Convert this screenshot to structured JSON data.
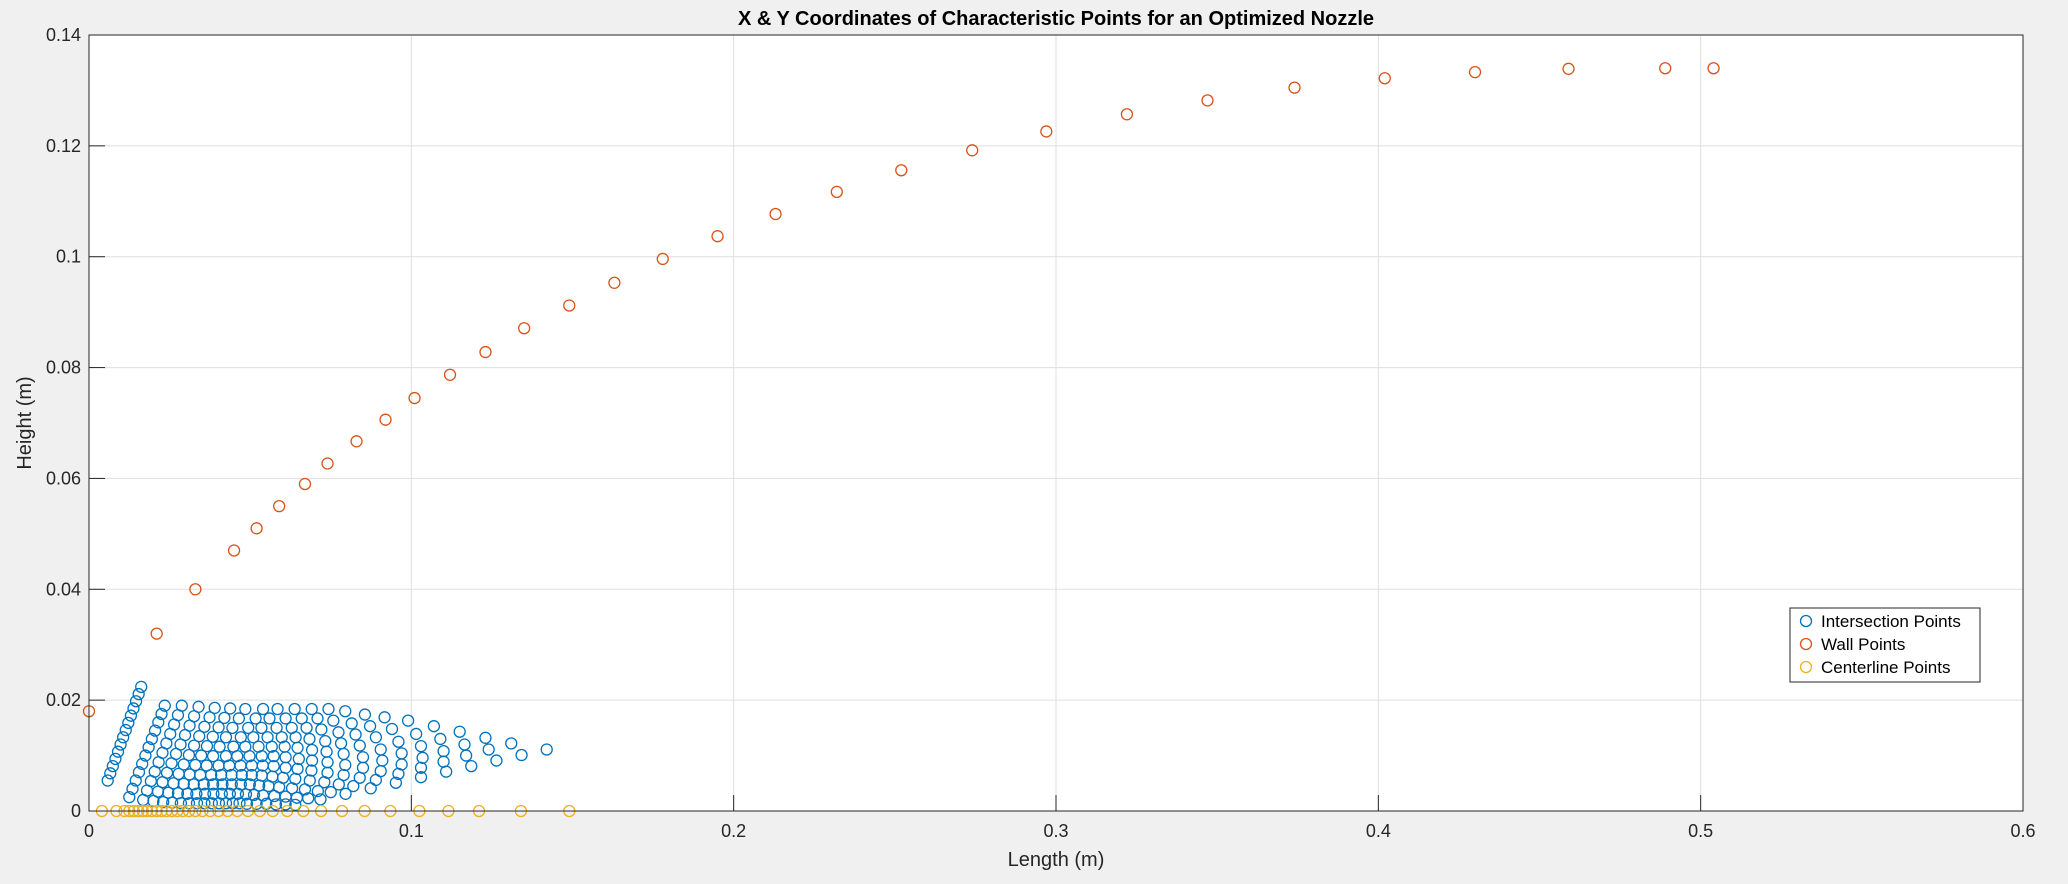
{
  "chart_data": {
    "type": "scatter",
    "title": "X & Y Coordinates of Characteristic Points for an Optimized Nozzle",
    "xlabel": "Length (m)",
    "ylabel": "Height (m)",
    "xlim": [
      0,
      0.6
    ],
    "ylim": [
      0,
      0.14
    ],
    "xticks": [
      0,
      0.1,
      0.2,
      0.3,
      0.4,
      0.5,
      0.6
    ],
    "xtick_labels": [
      "0",
      "0.1",
      "0.2",
      "0.3",
      "0.4",
      "0.5",
      "0.6"
    ],
    "yticks": [
      0,
      0.02,
      0.04,
      0.06,
      0.08,
      0.1,
      0.12,
      0.14
    ],
    "ytick_labels": [
      "0",
      "0.02",
      "0.04",
      "0.06",
      "0.08",
      "0.1",
      "0.12",
      "0.14"
    ],
    "grid": true,
    "legend_position": "bottom-right",
    "marker": "circle-open",
    "series": [
      {
        "name": "Intersection Points",
        "color": "#0072BD",
        "x": [
          0.0058,
          0.0066,
          0.0074,
          0.0082,
          0.009,
          0.0098,
          0.0106,
          0.0114,
          0.0122,
          0.013,
          0.0138,
          0.0146,
          0.0154,
          0.0162,
          0.0125,
          0.0135,
          0.0145,
          0.0155,
          0.0165,
          0.0175,
          0.0185,
          0.0195,
          0.0205,
          0.0215,
          0.0225,
          0.0235,
          0.0168,
          0.018,
          0.0192,
          0.0204,
          0.0216,
          0.0228,
          0.024,
          0.0252,
          0.0264,
          0.0276,
          0.0288,
          0.02,
          0.0214,
          0.0228,
          0.0242,
          0.0256,
          0.027,
          0.0284,
          0.0298,
          0.0312,
          0.0326,
          0.034,
          0.023,
          0.0246,
          0.0262,
          0.0278,
          0.0294,
          0.031,
          0.0326,
          0.0342,
          0.0358,
          0.0374,
          0.039,
          0.0258,
          0.0276,
          0.0294,
          0.0312,
          0.033,
          0.0348,
          0.0366,
          0.0384,
          0.0402,
          0.042,
          0.0438,
          0.0285,
          0.0305,
          0.0325,
          0.0345,
          0.0365,
          0.0385,
          0.0405,
          0.0425,
          0.0445,
          0.0465,
          0.0485,
          0.031,
          0.0333,
          0.0356,
          0.0379,
          0.0402,
          0.0425,
          0.0448,
          0.0471,
          0.0494,
          0.0517,
          0.054,
          0.0335,
          0.036,
          0.0385,
          0.041,
          0.0435,
          0.046,
          0.0485,
          0.051,
          0.0535,
          0.056,
          0.0585,
          0.0358,
          0.0386,
          0.0414,
          0.0442,
          0.047,
          0.0498,
          0.0526,
          0.0554,
          0.0582,
          0.061,
          0.0638,
          0.0381,
          0.0412,
          0.0443,
          0.0474,
          0.0505,
          0.0536,
          0.0567,
          0.0598,
          0.0629,
          0.066,
          0.0691,
          0.0403,
          0.0437,
          0.0471,
          0.0505,
          0.0539,
          0.0573,
          0.0607,
          0.0641,
          0.0675,
          0.0709,
          0.0743,
          0.0425,
          0.0462,
          0.0499,
          0.0536,
          0.0573,
          0.061,
          0.0647,
          0.0684,
          0.0721,
          0.0758,
          0.0795,
          0.0446,
          0.0487,
          0.0528,
          0.0569,
          0.061,
          0.0651,
          0.0692,
          0.0733,
          0.0774,
          0.0815,
          0.0856,
          0.0467,
          0.0512,
          0.0557,
          0.0602,
          0.0647,
          0.0692,
          0.0737,
          0.0782,
          0.0827,
          0.0872,
          0.0917,
          0.049,
          0.054,
          0.059,
          0.064,
          0.069,
          0.074,
          0.079,
          0.084,
          0.089,
          0.094,
          0.099,
          0.052,
          0.0575,
          0.063,
          0.0685,
          0.074,
          0.0795,
          0.085,
          0.0905,
          0.096,
          0.1015,
          0.107,
          0.055,
          0.061,
          0.067,
          0.073,
          0.079,
          0.085,
          0.091,
          0.097,
          0.103,
          0.109,
          0.115,
          0.058,
          0.0645,
          0.071,
          0.0775,
          0.084,
          0.0905,
          0.097,
          0.1035,
          0.11,
          0.1165,
          0.123,
          0.061,
          0.068,
          0.075,
          0.082,
          0.089,
          0.096,
          0.103,
          0.11,
          0.117,
          0.124,
          0.131,
          0.064,
          0.0718,
          0.0796,
          0.0874,
          0.0952,
          0.103,
          0.1108,
          0.1186,
          0.1264,
          0.1342,
          0.142
        ],
        "y": [
          0.0055,
          0.0068,
          0.0081,
          0.0094,
          0.0107,
          0.012,
          0.0133,
          0.0146,
          0.0159,
          0.0172,
          0.0185,
          0.0198,
          0.0211,
          0.0224,
          0.0025,
          0.004,
          0.0055,
          0.007,
          0.0085,
          0.01,
          0.0115,
          0.013,
          0.0145,
          0.016,
          0.0175,
          0.019,
          0.002,
          0.0037,
          0.0054,
          0.0071,
          0.0088,
          0.0105,
          0.0122,
          0.0139,
          0.0156,
          0.0173,
          0.019,
          0.0018,
          0.0035,
          0.0052,
          0.0069,
          0.0086,
          0.0103,
          0.012,
          0.0137,
          0.0154,
          0.0171,
          0.0188,
          0.0016,
          0.0033,
          0.005,
          0.0067,
          0.0084,
          0.0101,
          0.0118,
          0.0135,
          0.0152,
          0.0169,
          0.0186,
          0.0015,
          0.0032,
          0.0049,
          0.0066,
          0.0083,
          0.01,
          0.0117,
          0.0134,
          0.0151,
          0.0168,
          0.0185,
          0.0014,
          0.0031,
          0.0048,
          0.0065,
          0.0082,
          0.0099,
          0.0116,
          0.0133,
          0.015,
          0.0167,
          0.0184,
          0.0014,
          0.0031,
          0.0048,
          0.0065,
          0.0082,
          0.0099,
          0.0116,
          0.0133,
          0.015,
          0.0167,
          0.0184,
          0.0014,
          0.0031,
          0.0048,
          0.0065,
          0.0082,
          0.0099,
          0.0116,
          0.0133,
          0.015,
          0.0167,
          0.0184,
          0.0014,
          0.0031,
          0.0048,
          0.0065,
          0.0082,
          0.0099,
          0.0116,
          0.0133,
          0.015,
          0.0167,
          0.0184,
          0.0014,
          0.0031,
          0.0048,
          0.0065,
          0.0082,
          0.0099,
          0.0116,
          0.0133,
          0.015,
          0.0167,
          0.0184,
          0.0014,
          0.0031,
          0.0048,
          0.0065,
          0.0082,
          0.0099,
          0.0116,
          0.0133,
          0.015,
          0.0167,
          0.0184,
          0.0014,
          0.0031,
          0.0048,
          0.0064,
          0.0081,
          0.0097,
          0.0114,
          0.013,
          0.0147,
          0.0163,
          0.018,
          0.0014,
          0.003,
          0.0046,
          0.0062,
          0.0078,
          0.0094,
          0.011,
          0.0126,
          0.0142,
          0.0158,
          0.0174,
          0.0014,
          0.0029,
          0.0045,
          0.006,
          0.0076,
          0.0091,
          0.0107,
          0.0122,
          0.0138,
          0.0153,
          0.0169,
          0.0013,
          0.0028,
          0.0043,
          0.0058,
          0.0073,
          0.0088,
          0.0103,
          0.0118,
          0.0133,
          0.0148,
          0.0163,
          0.0013,
          0.0027,
          0.0041,
          0.0055,
          0.0069,
          0.0083,
          0.0097,
          0.0111,
          0.0125,
          0.0139,
          0.0153,
          0.0013,
          0.0026,
          0.0039,
          0.0052,
          0.0065,
          0.0078,
          0.0091,
          0.0104,
          0.0117,
          0.013,
          0.0143,
          0.0012,
          0.0024,
          0.0036,
          0.0048,
          0.006,
          0.0072,
          0.0084,
          0.0096,
          0.0108,
          0.012,
          0.0132,
          0.0012,
          0.0023,
          0.0034,
          0.0045,
          0.0056,
          0.0067,
          0.0078,
          0.0089,
          0.01,
          0.0111,
          0.0122,
          0.0011,
          0.0021,
          0.0031,
          0.0041,
          0.0051,
          0.0061,
          0.0071,
          0.0081,
          0.0091,
          0.0101,
          0.0111
        ]
      },
      {
        "name": "Wall Points",
        "color": "#D95319",
        "x": [
          0.0,
          0.021,
          0.033,
          0.045,
          0.052,
          0.059,
          0.067,
          0.074,
          0.083,
          0.092,
          0.101,
          0.112,
          0.123,
          0.135,
          0.149,
          0.163,
          0.178,
          0.195,
          0.213,
          0.232,
          0.252,
          0.274,
          0.297,
          0.322,
          0.347,
          0.374,
          0.402,
          0.43,
          0.459,
          0.489,
          0.504
        ],
        "y": [
          0.018,
          0.032,
          0.04,
          0.047,
          0.051,
          0.055,
          0.059,
          0.0627,
          0.0667,
          0.0706,
          0.0745,
          0.0787,
          0.0828,
          0.0871,
          0.0912,
          0.0953,
          0.0996,
          0.1037,
          0.1077,
          0.1117,
          0.1156,
          0.1192,
          0.1226,
          0.1257,
          0.1282,
          0.1305,
          0.1322,
          0.1333,
          0.1339,
          0.134,
          0.134
        ]
      },
      {
        "name": "Centerline Points",
        "color": "#EDB120",
        "x": [
          0.004,
          0.0085,
          0.011,
          0.0125,
          0.0139,
          0.0153,
          0.0167,
          0.018,
          0.0195,
          0.021,
          0.0225,
          0.024,
          0.0257,
          0.0274,
          0.0291,
          0.031,
          0.033,
          0.0352,
          0.0376,
          0.0402,
          0.043,
          0.046,
          0.0493,
          0.053,
          0.057,
          0.0615,
          0.0665,
          0.072,
          0.0785,
          0.0855,
          0.0935,
          0.1025,
          0.1115,
          0.121,
          0.134,
          0.149
        ],
        "y": [
          0,
          0,
          0,
          0,
          0,
          0,
          0,
          0,
          0,
          0,
          0,
          0,
          0,
          0,
          0,
          0,
          0,
          0,
          0,
          0,
          0,
          0,
          0,
          0,
          0,
          0,
          0,
          0,
          0,
          0,
          0,
          0,
          0,
          0,
          0,
          0
        ]
      }
    ]
  }
}
